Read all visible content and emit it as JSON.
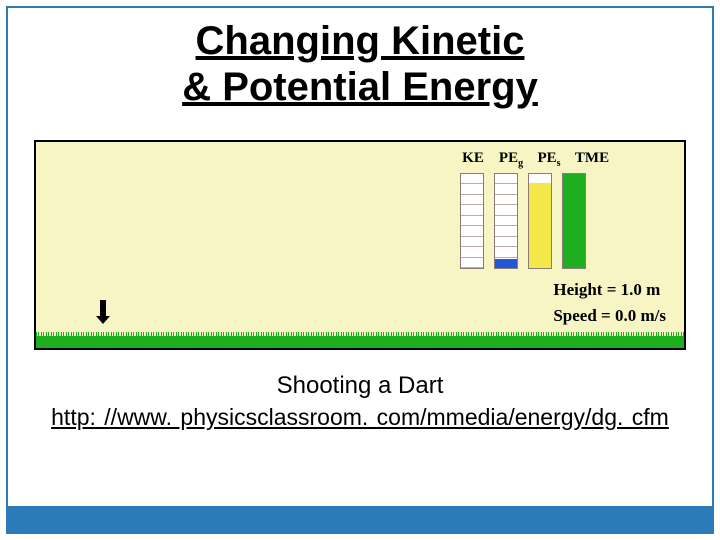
{
  "title_line1": "Changing Kinetic",
  "title_line2": "& Potential Energy",
  "sim": {
    "background_color": "#f6f5c3",
    "border_color": "#000000",
    "bar_labels": {
      "ke": "KE",
      "peg": "PE",
      "peg_sub": "g",
      "pes": "PE",
      "pes_sub": "s",
      "tme": "TME"
    },
    "bars": {
      "segments": 9,
      "bar_border_color": "#8a7a78",
      "grid_color": "#b9aca9",
      "ke": {
        "fill_pct": 0,
        "fill_color": "#ff2a2a"
      },
      "peg": {
        "fill_pct": 10,
        "fill_color": "#2257d6"
      },
      "pes": {
        "fill_pct": 90,
        "fill_color": "#f4e74a"
      },
      "tme": {
        "fill_pct": 100,
        "fill_color": "#1fae1f"
      }
    },
    "height_label": "Height = 1.0 m",
    "speed_label": "Speed =  0.0  m/s",
    "grass_color": "#1fae1f"
  },
  "caption": "Shooting a Dart",
  "url": "http: //www. physicsclassroom. com/mmedia/energy/dg. cfm",
  "accent_color": "#2b7bb9"
}
